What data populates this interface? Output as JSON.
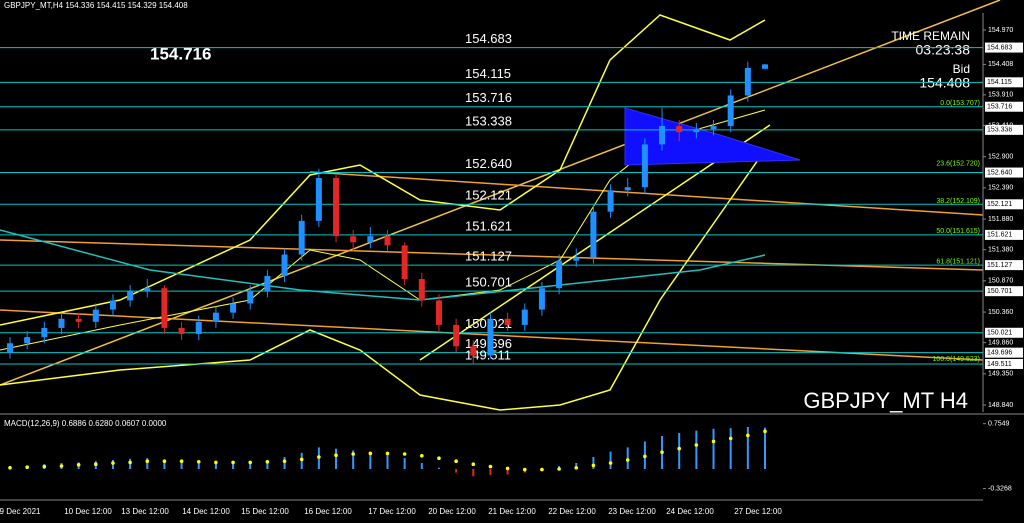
{
  "chart_data": {
    "type": "candlestick",
    "header": "GBPJPY_MT,H4  154.336 154.415 154.329 154.408",
    "big_price": "154.716",
    "time_remain_label": "TIME REMAIN",
    "time_remain": "03:23:38",
    "bid_label": "Bid",
    "bid": "154.408",
    "watermark": "GBPJPY_MT H4",
    "up_color": "#1e90ff",
    "down_color": "#e32626",
    "ylim": [
      148.726,
      155.248
    ],
    "yticks": [
      {
        "value": 154.97,
        "label": "154.970"
      },
      154.408,
      {
        "value": 153.91,
        "label": "153.910"
      },
      {
        "value": 153.41,
        "label": "153.410"
      },
      {
        "value": 152.9,
        "label": "152.900"
      },
      {
        "value": 152.39,
        "label": "152.390"
      },
      {
        "value": 151.88,
        "label": "151.880"
      },
      {
        "value": 151.38,
        "label": "151.380"
      },
      {
        "value": 150.87,
        "label": "150.870"
      },
      {
        "value": 150.36,
        "label": "150.360"
      },
      {
        "value": 149.86,
        "label": "149.860"
      },
      {
        "value": 149.35,
        "label": "149.350"
      },
      {
        "value": 148.84,
        "label": "148.840"
      }
    ],
    "levels": [
      154.683,
      154.115,
      153.716,
      153.338,
      {
        "value": 152.64,
        "label": "152.640"
      },
      152.121,
      151.621,
      151.127,
      150.701,
      150.021,
      149.696,
      149.511
    ],
    "level_color": "#00c8c8",
    "fib": [
      {
        "value": 153.707,
        "label": "0.0(153.707)"
      },
      {
        "value": 152.72,
        "label": "23.6(152.720)"
      },
      {
        "value": 152.109,
        "label": "38.2(152.109)"
      },
      {
        "value": 151.615,
        "label": "50.0(151.615)"
      },
      {
        "value": 151.121,
        "label": "61.8(151.121)"
      },
      {
        "value": 149.523,
        "label": "100.0(149.523)"
      }
    ],
    "fib_color": "#7cfc00",
    "ohlc": [
      [
        149.7,
        149.95,
        149.6,
        149.85
      ],
      [
        149.85,
        150.05,
        149.75,
        149.95
      ],
      [
        149.95,
        150.2,
        149.85,
        150.1
      ],
      [
        150.1,
        150.35,
        150.0,
        150.25
      ],
      [
        150.25,
        150.35,
        150.1,
        150.2
      ],
      [
        150.2,
        150.5,
        150.1,
        150.4
      ],
      [
        150.4,
        150.65,
        150.3,
        150.55
      ],
      [
        150.55,
        150.8,
        150.45,
        150.7
      ],
      [
        150.7,
        150.9,
        150.6,
        150.75
      ],
      [
        150.75,
        150.8,
        150.0,
        150.1
      ],
      [
        150.1,
        150.2,
        149.9,
        150.0
      ],
      [
        150.0,
        150.3,
        149.9,
        150.2
      ],
      [
        150.2,
        150.45,
        150.1,
        150.35
      ],
      [
        150.35,
        150.6,
        150.25,
        150.5
      ],
      [
        150.5,
        150.8,
        150.4,
        150.7
      ],
      [
        150.7,
        151.05,
        150.6,
        150.95
      ],
      [
        150.95,
        151.4,
        150.85,
        151.3
      ],
      [
        151.3,
        151.95,
        151.2,
        151.85
      ],
      [
        151.85,
        152.7,
        151.75,
        152.55
      ],
      [
        152.55,
        152.6,
        151.5,
        151.6
      ],
      [
        151.6,
        151.7,
        151.35,
        151.5
      ],
      [
        151.5,
        151.75,
        151.4,
        151.6
      ],
      [
        151.6,
        151.7,
        151.35,
        151.45
      ],
      [
        151.45,
        151.5,
        150.8,
        150.9
      ],
      [
        150.9,
        151.0,
        150.45,
        150.55
      ],
      [
        150.55,
        150.65,
        150.05,
        150.15
      ],
      [
        150.15,
        150.25,
        149.7,
        149.8
      ],
      [
        149.8,
        149.9,
        149.5,
        149.65
      ],
      [
        149.65,
        150.35,
        149.6,
        150.25
      ],
      [
        150.25,
        150.35,
        150.05,
        150.15
      ],
      [
        150.15,
        150.5,
        150.05,
        150.4
      ],
      [
        150.4,
        150.85,
        150.3,
        150.75
      ],
      [
        150.75,
        151.3,
        150.65,
        151.2
      ],
      [
        151.2,
        151.4,
        151.1,
        151.25
      ],
      [
        151.25,
        152.1,
        151.15,
        152.0
      ],
      [
        152.0,
        152.45,
        151.9,
        152.35
      ],
      [
        152.35,
        152.55,
        152.25,
        152.4
      ],
      [
        152.4,
        153.2,
        152.3,
        153.1
      ],
      [
        153.1,
        153.7,
        153.0,
        153.4
      ],
      [
        153.4,
        153.5,
        153.15,
        153.3
      ],
      [
        153.3,
        153.45,
        153.2,
        153.35
      ],
      [
        153.35,
        153.5,
        153.25,
        153.4
      ],
      [
        153.4,
        154.0,
        153.3,
        153.9
      ],
      [
        153.9,
        154.45,
        153.8,
        154.35
      ],
      [
        154.336,
        154.415,
        154.329,
        154.408
      ]
    ],
    "xlabels": [
      "9 Dec 2021",
      "10 Dec 12:00",
      "13 Dec 12:00",
      "14 Dec 12:00",
      "15 Dec 12:00",
      "16 Dec 12:00",
      "17 Dec 12:00",
      "20 Dec 12:00",
      "21 Dec 12:00",
      "22 Dec 12:00",
      "23 Dec 12:00",
      "24 Dec 12:00",
      "27 Dec 12:00"
    ],
    "macd": {
      "title": "MACD(12,26,9) 0.6886 0.6280 0.0607 0.0000",
      "ylim": [
        -0.45,
        0.85
      ],
      "yticks": [
        0.7549,
        -0.3268
      ],
      "values": [
        0.05,
        0.06,
        0.08,
        0.1,
        0.11,
        0.13,
        0.15,
        0.17,
        0.18,
        0.14,
        0.1,
        0.09,
        0.09,
        0.1,
        0.12,
        0.15,
        0.2,
        0.27,
        0.36,
        0.34,
        0.31,
        0.29,
        0.25,
        0.18,
        0.1,
        0.02,
        -0.06,
        -0.12,
        -0.1,
        -0.09,
        -0.06,
        -0.01,
        0.05,
        0.1,
        0.2,
        0.29,
        0.36,
        0.46,
        0.55,
        0.6,
        0.64,
        0.67,
        0.68,
        0.7,
        0.6886
      ],
      "signal": [
        0.02,
        0.03,
        0.04,
        0.05,
        0.07,
        0.08,
        0.1,
        0.11,
        0.13,
        0.13,
        0.13,
        0.12,
        0.11,
        0.11,
        0.11,
        0.12,
        0.13,
        0.16,
        0.2,
        0.23,
        0.25,
        0.26,
        0.26,
        0.25,
        0.22,
        0.18,
        0.13,
        0.08,
        0.04,
        0.01,
        -0.01,
        -0.01,
        0.0,
        0.02,
        0.06,
        0.1,
        0.15,
        0.21,
        0.28,
        0.34,
        0.4,
        0.46,
        0.51,
        0.56,
        0.628
      ],
      "color": "#3399ff",
      "negative_color": "#e32626",
      "signal_color": "#ffff00"
    }
  }
}
